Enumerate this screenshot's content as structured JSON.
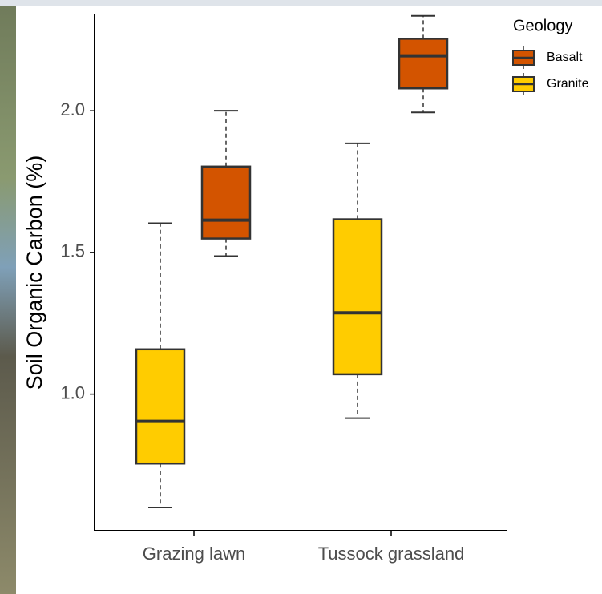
{
  "chart_data": {
    "type": "box",
    "categories": [
      "Grazing lawn",
      "Tussock grassland"
    ],
    "series": [
      {
        "name": "Basalt",
        "color": "#d35400",
        "values": [
          {
            "min": 1.487,
            "q1": 1.549,
            "median": 1.614,
            "q3": 1.803,
            "max": 2.0
          },
          {
            "min": 1.994,
            "q1": 2.079,
            "median": 2.194,
            "q3": 2.254,
            "max": 2.335
          }
        ]
      },
      {
        "name": "Granite",
        "color": "#ffcc00",
        "values": [
          {
            "min": 0.6,
            "q1": 0.755,
            "median": 0.904,
            "q3": 1.158,
            "max": 1.603
          },
          {
            "min": 0.915,
            "q1": 1.07,
            "median": 1.287,
            "q3": 1.617,
            "max": 1.885
          }
        ]
      }
    ],
    "y_label": "Soil Organic Carbon (%)",
    "legend_title": "Geology",
    "legend": "top-right",
    "ylim": [
      0.518,
      2.34
    ],
    "yticks": [
      {
        "value": 1.0,
        "label": "1.0"
      },
      {
        "value": 1.5,
        "label": "1.5"
      },
      {
        "value": 2.0,
        "label": "2.0"
      }
    ],
    "grid": false
  }
}
